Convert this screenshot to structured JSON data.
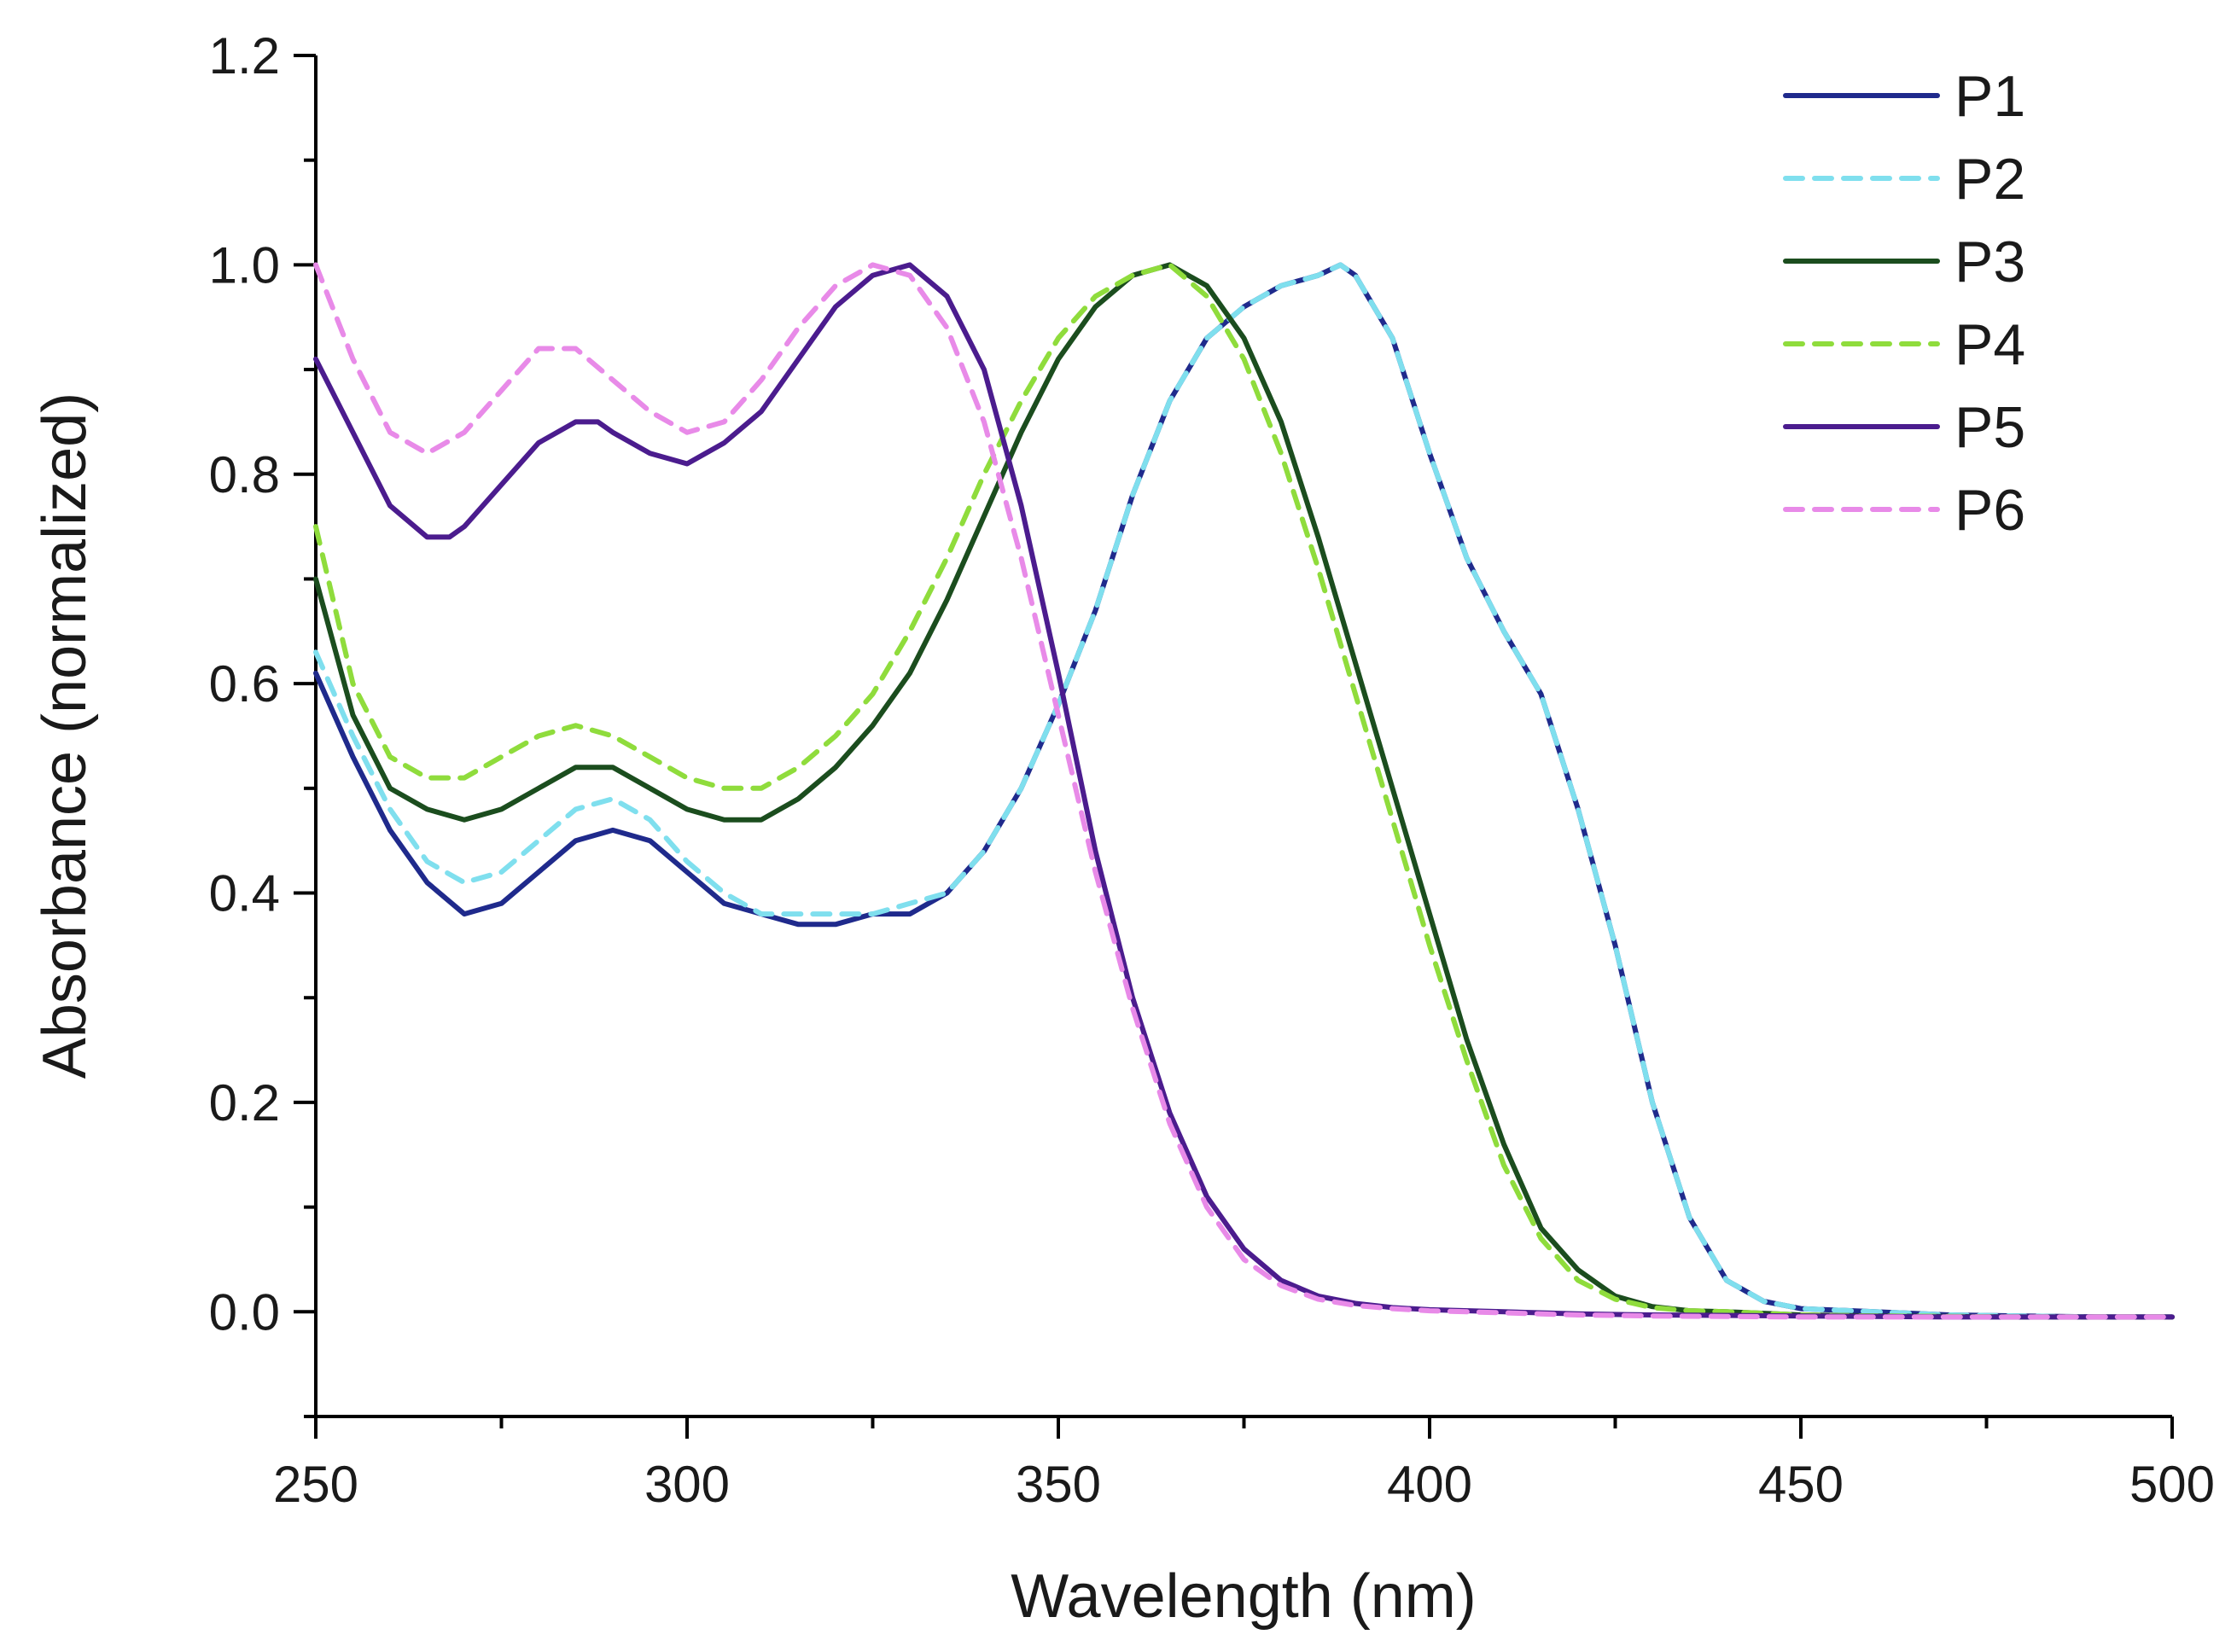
{
  "chart_data": {
    "type": "line",
    "title": "",
    "xlabel": "Wavelength (nm)",
    "ylabel": "Absorbance (normalized)",
    "xlim": [
      250,
      500
    ],
    "ylim": [
      -0.1,
      1.2
    ],
    "xticks": [
      250,
      300,
      350,
      400,
      450,
      500
    ],
    "xtick_labels": [
      "250",
      "300",
      "350",
      "400",
      "450",
      "500"
    ],
    "xminor_step": 25,
    "yticks": [
      0.0,
      0.2,
      0.4,
      0.6,
      0.8,
      1.0,
      1.2
    ],
    "ytick_labels": [
      "0.0",
      "0.2",
      "0.4",
      "0.6",
      "0.8",
      "1.0",
      "1.2"
    ],
    "yminor_step": 0.1,
    "grid": false,
    "legend_position": "top-right",
    "series": [
      {
        "name": "P1",
        "color": "#1f2a8c",
        "dash": "solid",
        "x": [
          250,
          255,
          260,
          265,
          270,
          275,
          280,
          285,
          290,
          295,
          300,
          305,
          310,
          315,
          320,
          325,
          330,
          335,
          340,
          345,
          350,
          355,
          360,
          365,
          370,
          375,
          380,
          385,
          388,
          390,
          395,
          400,
          405,
          410,
          415,
          420,
          425,
          430,
          435,
          440,
          445,
          450,
          460,
          470,
          480,
          490,
          500
        ],
        "y": [
          0.61,
          0.53,
          0.46,
          0.41,
          0.38,
          0.39,
          0.42,
          0.45,
          0.46,
          0.45,
          0.42,
          0.39,
          0.38,
          0.37,
          0.37,
          0.38,
          0.38,
          0.4,
          0.44,
          0.5,
          0.58,
          0.67,
          0.78,
          0.87,
          0.93,
          0.96,
          0.98,
          0.99,
          1.0,
          0.99,
          0.93,
          0.82,
          0.72,
          0.65,
          0.59,
          0.48,
          0.35,
          0.2,
          0.09,
          0.03,
          0.01,
          0.003,
          0.0,
          -0.003,
          -0.004,
          -0.005,
          -0.005
        ]
      },
      {
        "name": "P2",
        "color": "#7fdfee",
        "dash": "dashed",
        "x": [
          250,
          255,
          260,
          265,
          270,
          275,
          280,
          285,
          290,
          295,
          300,
          305,
          310,
          315,
          320,
          325,
          330,
          335,
          340,
          345,
          350,
          355,
          360,
          365,
          370,
          375,
          380,
          385,
          388,
          390,
          395,
          400,
          405,
          410,
          415,
          420,
          425,
          430,
          435,
          440,
          445,
          450,
          460,
          470,
          480,
          490,
          500
        ],
        "y": [
          0.63,
          0.55,
          0.48,
          0.43,
          0.41,
          0.42,
          0.45,
          0.48,
          0.49,
          0.47,
          0.43,
          0.4,
          0.38,
          0.38,
          0.38,
          0.38,
          0.39,
          0.4,
          0.44,
          0.5,
          0.58,
          0.67,
          0.78,
          0.87,
          0.93,
          0.96,
          0.98,
          0.99,
          1.0,
          0.99,
          0.93,
          0.82,
          0.72,
          0.65,
          0.59,
          0.48,
          0.35,
          0.2,
          0.09,
          0.03,
          0.01,
          0.003,
          0.0,
          -0.003,
          -0.004,
          -0.005,
          -0.005
        ]
      },
      {
        "name": "P3",
        "color": "#1b4d1e",
        "dash": "solid",
        "x": [
          250,
          255,
          260,
          265,
          270,
          275,
          280,
          285,
          290,
          295,
          300,
          305,
          310,
          315,
          320,
          325,
          330,
          335,
          340,
          345,
          350,
          355,
          360,
          365,
          370,
          375,
          380,
          385,
          390,
          395,
          400,
          405,
          410,
          415,
          420,
          425,
          430,
          435,
          440,
          450,
          460,
          480,
          500
        ],
        "y": [
          0.7,
          0.57,
          0.5,
          0.48,
          0.47,
          0.48,
          0.5,
          0.52,
          0.52,
          0.5,
          0.48,
          0.47,
          0.47,
          0.49,
          0.52,
          0.56,
          0.61,
          0.68,
          0.76,
          0.84,
          0.91,
          0.96,
          0.99,
          1.0,
          0.98,
          0.93,
          0.85,
          0.74,
          0.62,
          0.5,
          0.38,
          0.26,
          0.16,
          0.08,
          0.04,
          0.015,
          0.005,
          0.001,
          0.0,
          -0.003,
          -0.004,
          -0.005,
          -0.005
        ]
      },
      {
        "name": "P4",
        "color": "#8fdc3c",
        "dash": "dashed",
        "x": [
          250,
          255,
          260,
          265,
          270,
          275,
          280,
          285,
          290,
          295,
          300,
          305,
          310,
          315,
          320,
          325,
          330,
          335,
          340,
          345,
          350,
          355,
          360,
          365,
          370,
          375,
          380,
          385,
          390,
          395,
          400,
          405,
          410,
          415,
          420,
          425,
          430,
          435,
          440,
          450,
          460,
          480,
          500
        ],
        "y": [
          0.75,
          0.6,
          0.53,
          0.51,
          0.51,
          0.53,
          0.55,
          0.56,
          0.55,
          0.53,
          0.51,
          0.5,
          0.5,
          0.52,
          0.55,
          0.59,
          0.65,
          0.72,
          0.8,
          0.87,
          0.93,
          0.97,
          0.99,
          1.0,
          0.97,
          0.91,
          0.82,
          0.71,
          0.59,
          0.47,
          0.35,
          0.24,
          0.14,
          0.07,
          0.03,
          0.012,
          0.004,
          0.001,
          0.0,
          -0.003,
          -0.004,
          -0.005,
          -0.005
        ]
      },
      {
        "name": "P5",
        "color": "#4b1c8e",
        "dash": "solid",
        "x": [
          250,
          255,
          260,
          265,
          268,
          270,
          275,
          280,
          285,
          288,
          290,
          295,
          300,
          305,
          310,
          315,
          320,
          325,
          330,
          335,
          340,
          345,
          350,
          355,
          360,
          365,
          370,
          375,
          380,
          385,
          390,
          395,
          400,
          410,
          420,
          430,
          450,
          470,
          500
        ],
        "y": [
          0.91,
          0.84,
          0.77,
          0.74,
          0.74,
          0.75,
          0.79,
          0.83,
          0.85,
          0.85,
          0.84,
          0.82,
          0.81,
          0.83,
          0.86,
          0.91,
          0.96,
          0.99,
          1.0,
          0.97,
          0.9,
          0.77,
          0.61,
          0.44,
          0.3,
          0.19,
          0.11,
          0.06,
          0.03,
          0.015,
          0.008,
          0.004,
          0.002,
          0.0,
          -0.002,
          -0.003,
          -0.004,
          -0.005,
          -0.005
        ]
      },
      {
        "name": "P6",
        "color": "#e88ae8",
        "dash": "dashed",
        "x": [
          250,
          255,
          260,
          265,
          270,
          275,
          280,
          285,
          290,
          295,
          300,
          305,
          310,
          315,
          320,
          325,
          330,
          335,
          340,
          345,
          350,
          355,
          360,
          365,
          370,
          375,
          380,
          385,
          390,
          395,
          400,
          410,
          420,
          430,
          450,
          470,
          500
        ],
        "y": [
          1.0,
          0.91,
          0.84,
          0.82,
          0.84,
          0.88,
          0.92,
          0.92,
          0.89,
          0.86,
          0.84,
          0.85,
          0.89,
          0.94,
          0.98,
          1.0,
          0.99,
          0.94,
          0.85,
          0.72,
          0.57,
          0.42,
          0.29,
          0.18,
          0.1,
          0.05,
          0.025,
          0.012,
          0.006,
          0.003,
          0.001,
          -0.001,
          -0.003,
          -0.004,
          -0.005,
          -0.005,
          -0.005
        ]
      }
    ]
  }
}
